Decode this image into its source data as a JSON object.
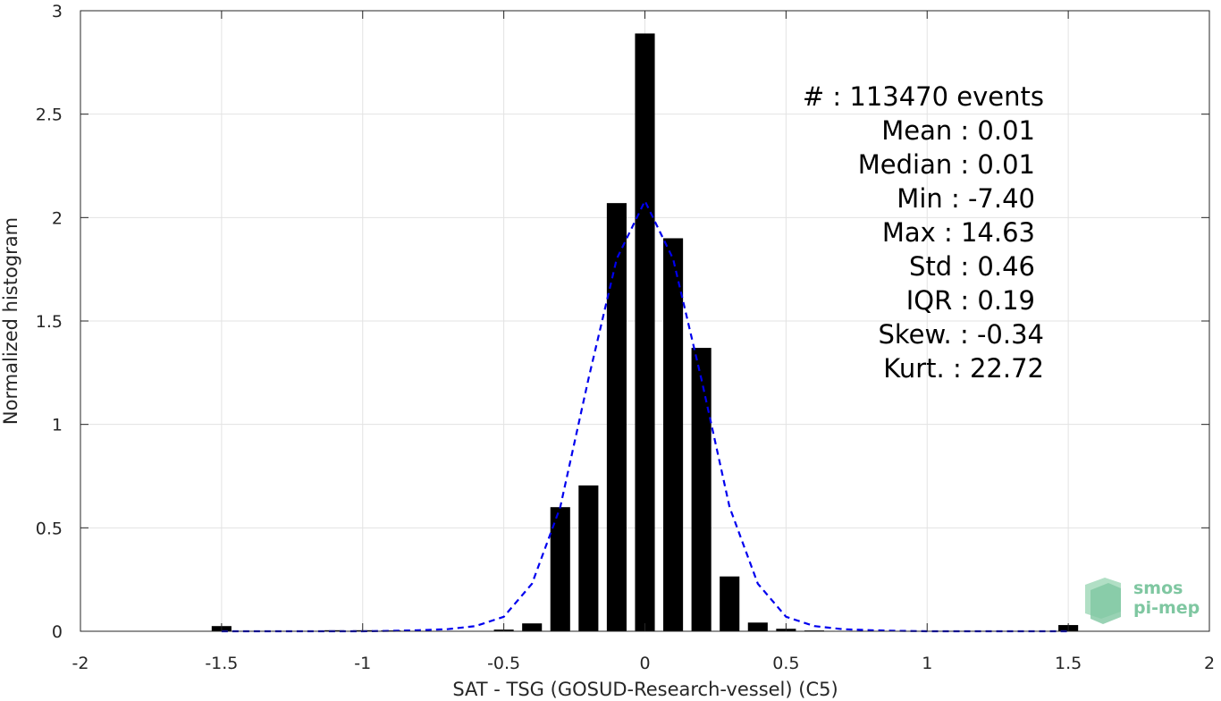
{
  "chart_data": {
    "type": "bar",
    "xlabel": "SAT - TSG (GOSUD-Research-vessel) (C5)",
    "ylabel": "Normalized histogram",
    "xlim": [
      -2,
      2
    ],
    "ylim": [
      0,
      3
    ],
    "xticks": [
      -2,
      -1.5,
      -1,
      -0.5,
      0,
      0.5,
      1,
      1.5,
      2
    ],
    "xtick_labels": [
      "-2",
      "-1.5",
      "-1",
      "-0.5",
      "0",
      "0.5",
      "1",
      "1.5",
      "2"
    ],
    "yticks": [
      0,
      0.5,
      1,
      1.5,
      2,
      2.5,
      3
    ],
    "ytick_labels": [
      "0",
      "0.5",
      "1",
      "1.5",
      "2",
      "2.5",
      "3"
    ],
    "grid": true,
    "bin_width": 0.1,
    "bars": {
      "x": [
        -1.5,
        -1.4,
        -1.3,
        -1.2,
        -1.1,
        -1.0,
        -0.9,
        -0.8,
        -0.7,
        -0.6,
        -0.5,
        -0.4,
        -0.3,
        -0.2,
        -0.1,
        0.0,
        0.1,
        0.2,
        0.3,
        0.4,
        0.5,
        0.6,
        0.7,
        0.8,
        0.9,
        1.0,
        1.1,
        1.2,
        1.3,
        1.4,
        1.5
      ],
      "values": [
        0.025,
        0.002,
        0.002,
        0.002,
        0.005,
        0.005,
        0.004,
        0.002,
        0.002,
        0.002,
        0.008,
        0.038,
        0.6,
        0.705,
        2.07,
        2.89,
        1.9,
        1.37,
        0.265,
        0.042,
        0.012,
        0.004,
        0.002,
        0.002,
        0.002,
        0.002,
        0.002,
        0.002,
        0.002,
        0.002,
        0.03
      ],
      "color": "#000000"
    },
    "fit_curve": {
      "style": "dashed",
      "color": "#0000ee",
      "x": [
        -1.5,
        -1.4,
        -1.3,
        -1.2,
        -1.1,
        -1.0,
        -0.9,
        -0.8,
        -0.7,
        -0.6,
        -0.5,
        -0.4,
        -0.3,
        -0.2,
        -0.1,
        0.0,
        0.1,
        0.2,
        0.3,
        0.4,
        0.5,
        0.6,
        0.7,
        0.8,
        0.9,
        1.0,
        1.1,
        1.2,
        1.3,
        1.4,
        1.5
      ],
      "y": [
        0.0,
        0.0,
        0.0,
        0.0,
        0.0,
        0.0,
        0.002,
        0.005,
        0.01,
        0.025,
        0.07,
        0.23,
        0.6,
        1.22,
        1.8,
        2.08,
        1.8,
        1.22,
        0.6,
        0.23,
        0.07,
        0.025,
        0.01,
        0.005,
        0.002,
        0.0,
        0.0,
        0.0,
        0.0,
        0.0,
        0.0
      ]
    },
    "annotations": [
      "#  : 113470 events",
      "Mean : 0.01",
      "Median : 0.01",
      "Min : -7.40",
      "Max : 14.63",
      "Std : 0.46",
      "IQR : 0.19",
      "Skew. : -0.34",
      "Kurt. : 22.72"
    ]
  },
  "logo": {
    "line1": "smos",
    "line2": "pi-mep",
    "color": "#7fc7a1"
  }
}
